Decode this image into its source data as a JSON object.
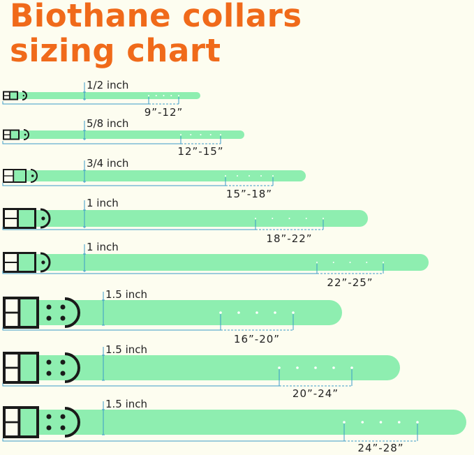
{
  "title": {
    "line1": "Biothane collars",
    "line2": "sizing chart"
  },
  "colors": {
    "title": "#f06a1a",
    "strap": "#8eeeb0",
    "hardware": "#1a1a1a",
    "measure_line": "#3a9cc8",
    "background": "#fdfdf0"
  },
  "collars": [
    {
      "width": "1/2 inch",
      "range": "9”-12”"
    },
    {
      "width": "5/8 inch",
      "range": "12”-15”"
    },
    {
      "width": "3/4 inch",
      "range": "15”-18”"
    },
    {
      "width": "1 inch",
      "range": "18”-22”"
    },
    {
      "width": "1 inch",
      "range": "22”-25”"
    },
    {
      "width": "1.5 inch",
      "range": "16”-20”"
    },
    {
      "width": "1.5 inch",
      "range": "20”-24”"
    },
    {
      "width": "1.5 inch",
      "range": "24”-28”"
    }
  ]
}
